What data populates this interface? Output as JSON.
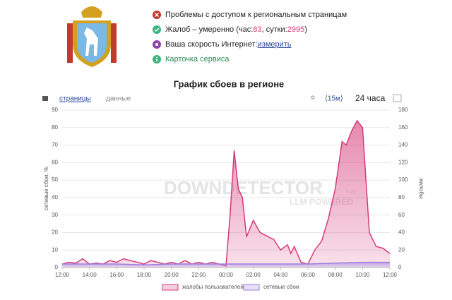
{
  "header": {
    "items": [
      {
        "text": "Проблемы с доступом к региональным страницам"
      },
      {
        "parts": [
          "Жалоб – умеренно (час: ",
          83,
          ", сутки: ",
          2995,
          ")"
        ]
      },
      {
        "text": "Ваша скорость Интернет: ",
        "link": "измерить"
      },
      {
        "text": "Карточка сервиса"
      }
    ]
  },
  "chart_data": {
    "type": "area",
    "title": "График сбоев в регионе",
    "tabs": [
      "страницы",
      "данные"
    ],
    "interval": "⟨15м⟩",
    "period": "24 часа",
    "watermark": [
      "DOWNDETECTOR",
      "info",
      "LLM POWERED"
    ],
    "ylabel": "сетевые сбои, %",
    "y2label": "жалобы",
    "xlim": [
      0,
      24
    ],
    "xticks": [
      {
        "value": 0,
        "label": "12:00"
      },
      {
        "value": 2,
        "label": "14:00"
      },
      {
        "value": 4,
        "label": "16:00"
      },
      {
        "value": 6,
        "label": "18:00"
      },
      {
        "value": 8,
        "label": "20:00"
      },
      {
        "value": 10,
        "label": "22:00"
      },
      {
        "value": 12,
        "label": "00:00"
      },
      {
        "value": 14,
        "label": "02:00"
      },
      {
        "value": 16,
        "label": "04:00"
      },
      {
        "value": 18,
        "label": "06:00"
      },
      {
        "value": 20,
        "label": "08:00"
      },
      {
        "value": 22,
        "label": "10:00"
      },
      {
        "value": 24,
        "label": "12:00"
      }
    ],
    "ylim": [
      0,
      90
    ],
    "yticks": [
      0,
      10,
      20,
      30,
      40,
      50,
      60,
      70,
      80,
      90
    ],
    "y2lim": [
      0,
      180
    ],
    "y2ticks": [
      0,
      20,
      40,
      60,
      80,
      100,
      120,
      140,
      160,
      180
    ],
    "grid": true,
    "series": [
      {
        "name": "жалобы пользователей",
        "color": "#d63a7a",
        "axis": "y2",
        "x": [
          0,
          0.5,
          1,
          1.5,
          2,
          2.5,
          3,
          3.5,
          4,
          4.5,
          5,
          5.5,
          6,
          6.5,
          7,
          7.5,
          8,
          8.5,
          9,
          9.5,
          10,
          10.5,
          11,
          11.5,
          12,
          12.3,
          12.6,
          12.9,
          13.2,
          13.5,
          14,
          14.5,
          15,
          15.5,
          16,
          16.5,
          16.75,
          17,
          17.5,
          18,
          18.5,
          19,
          19.5,
          20,
          20.5,
          20.8,
          21.2,
          21.6,
          22,
          22.5,
          23,
          23.5,
          24
        ],
        "values": [
          4,
          6,
          5,
          10,
          4,
          5,
          4,
          8,
          6,
          10,
          8,
          6,
          4,
          8,
          6,
          4,
          6,
          4,
          8,
          4,
          6,
          4,
          6,
          4,
          2,
          60,
          134,
          90,
          80,
          35,
          54,
          40,
          36,
          32,
          20,
          26,
          16,
          24,
          6,
          4,
          20,
          30,
          56,
          90,
          144,
          140,
          156,
          168,
          160,
          40,
          24,
          22,
          16
        ]
      },
      {
        "name": "сетевые сбои",
        "color": "#9b7fe0",
        "x": [
          0,
          2,
          4,
          6,
          8,
          10,
          12,
          14,
          16,
          18,
          20,
          22,
          24
        ],
        "values": [
          2,
          2,
          2,
          1.5,
          2,
          2,
          2,
          2,
          2,
          2,
          2.5,
          3,
          3
        ]
      }
    ]
  }
}
